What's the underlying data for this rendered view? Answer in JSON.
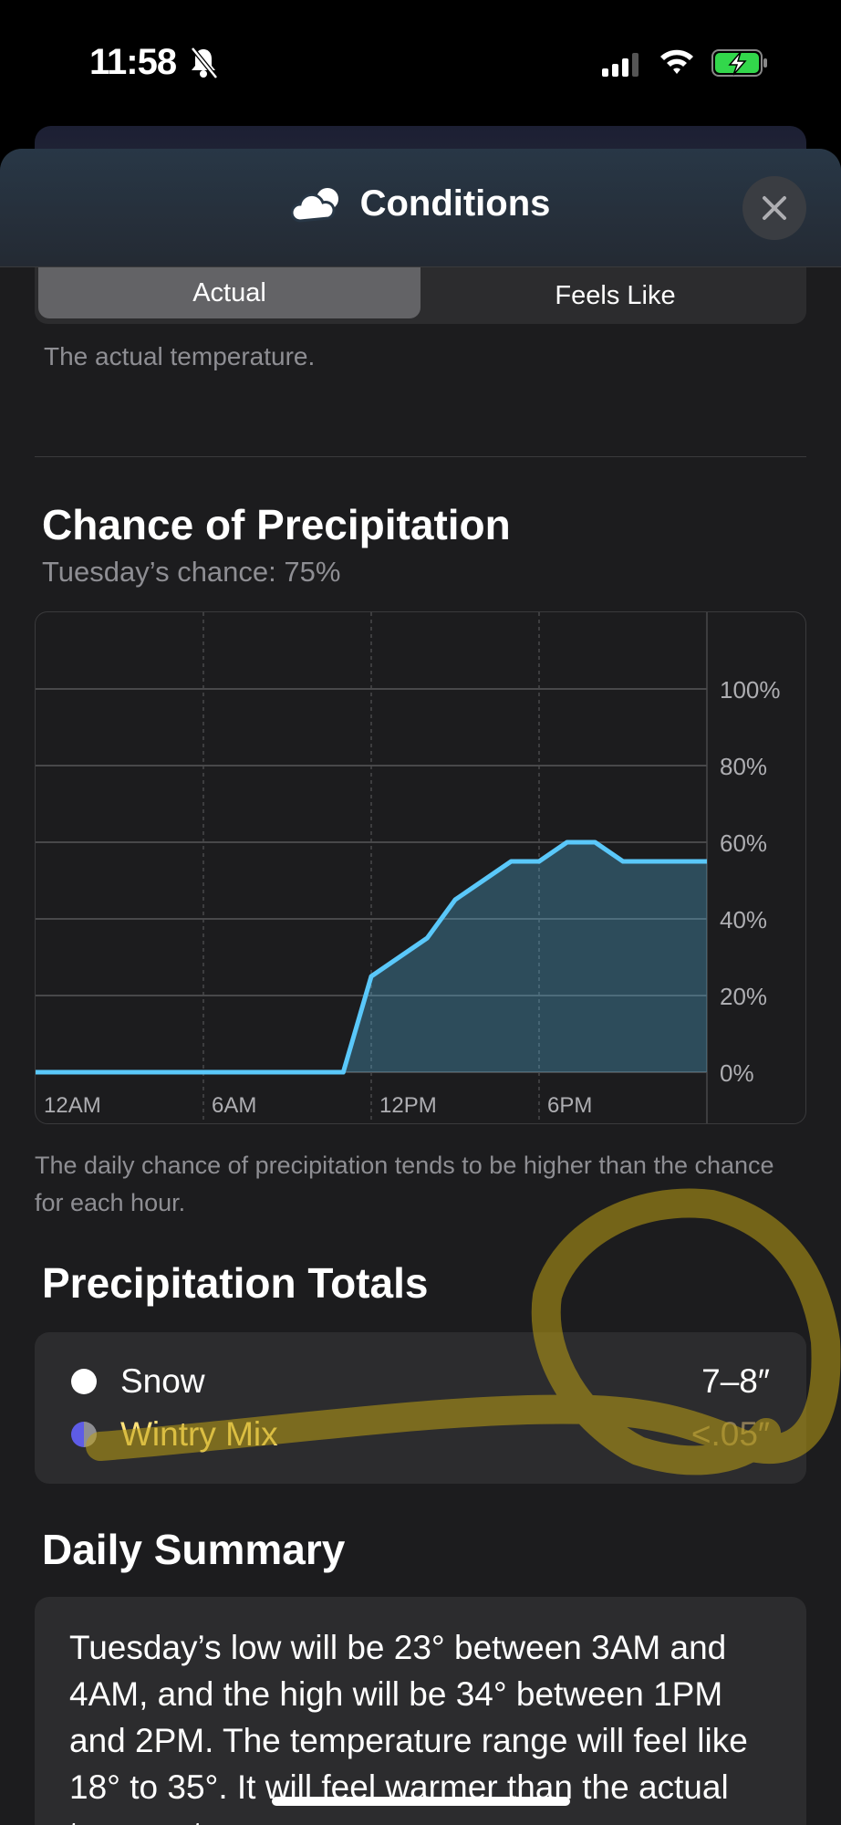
{
  "status_bar": {
    "time": "11:58",
    "icons": [
      "bell-slash-icon",
      "cellular-signal-icon",
      "wifi-icon",
      "battery-charging-icon"
    ],
    "battery_color": "#32d74b"
  },
  "header": {
    "title": "Conditions",
    "icon": "cloud-icon",
    "close_icon": "close-icon"
  },
  "segmented": {
    "options": [
      "Actual",
      "Feels Like"
    ],
    "selected": "Actual"
  },
  "actual_description": "The actual temperature.",
  "precipitation": {
    "title": "Chance of Precipitation",
    "subtitle": "Tuesday’s chance: 75%",
    "note": "The daily chance of precipitation tends to be higher than the chance for each hour."
  },
  "chart_data": {
    "type": "area",
    "x_tick_labels": [
      "12AM",
      "6AM",
      "12PM",
      "6PM"
    ],
    "y_tick_labels": [
      "100%",
      "80%",
      "60%",
      "40%",
      "20%",
      "0%"
    ],
    "ylim": [
      0,
      100
    ],
    "xlim_hours": [
      0,
      24
    ],
    "grid": true,
    "line_color": "#5ac8fa",
    "x_hours": [
      0,
      1,
      2,
      3,
      4,
      5,
      6,
      7,
      8,
      9,
      10,
      11,
      12,
      13,
      14,
      15,
      16,
      17,
      18,
      19,
      20,
      21,
      22,
      23,
      24
    ],
    "values": [
      0,
      0,
      0,
      0,
      0,
      0,
      0,
      0,
      0,
      0,
      0,
      0,
      25,
      30,
      35,
      45,
      50,
      55,
      55,
      60,
      60,
      55,
      55,
      55,
      55
    ]
  },
  "totals": {
    "title": "Precipitation Totals",
    "items": [
      {
        "label": "Snow",
        "value": "7–8″",
        "dot_color": "#ffffff"
      },
      {
        "label": "Wintry Mix",
        "value": "<.05″",
        "dot_color": "#5e5ce6"
      }
    ]
  },
  "summary": {
    "title": "Daily Summary",
    "text": "Tuesday’s low will be 23° between 3AM and 4AM, and the high will be 34° between 1PM and 2PM. The temperature range will feel like 18° to 35°. It will feel warmer than the actual temperature."
  }
}
